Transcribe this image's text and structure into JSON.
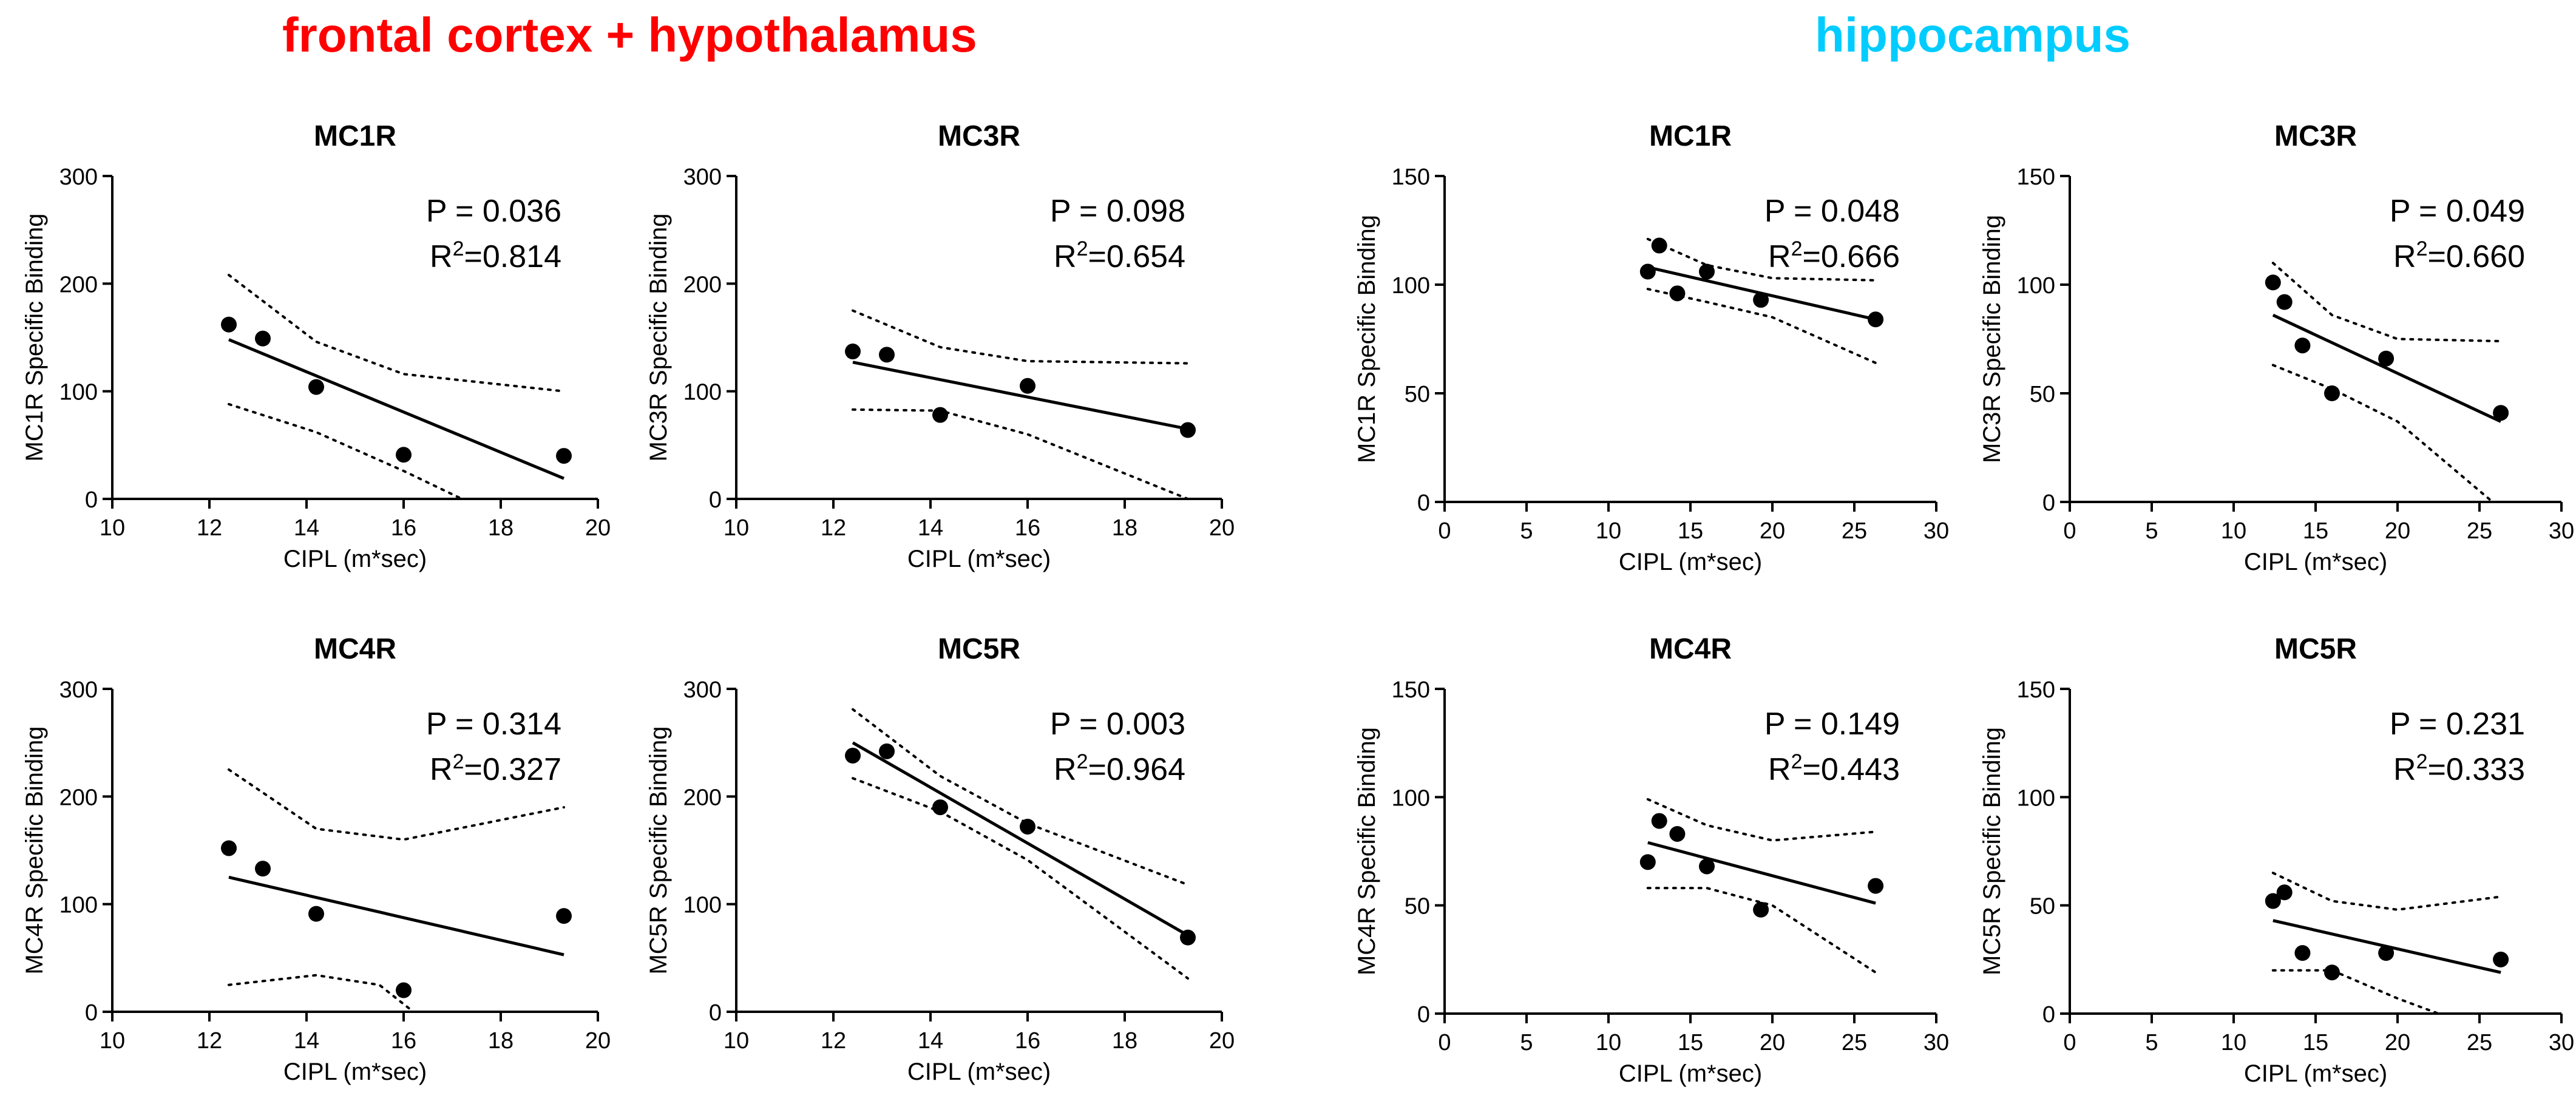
{
  "group_titles": {
    "left": {
      "text": "frontal cortex + hypothalamus",
      "color": "#ff0000"
    },
    "right": {
      "text": "hippocampus",
      "color": "#00ccff"
    }
  },
  "chart_data": [
    {
      "type": "scatter",
      "group": "frontal cortex + hypothalamus",
      "title": "MC1R",
      "xlabel": "CIPL (m*sec)",
      "ylabel": "MC1R Specific Binding",
      "xlim": [
        10,
        20
      ],
      "ylim": [
        0,
        300
      ],
      "xticks": [
        10,
        12,
        14,
        16,
        18,
        20
      ],
      "yticks": [
        0,
        100,
        200,
        300
      ],
      "points": [
        {
          "x": 12.4,
          "y": 162
        },
        {
          "x": 13.1,
          "y": 149
        },
        {
          "x": 14.2,
          "y": 104
        },
        {
          "x": 16.0,
          "y": 41
        },
        {
          "x": 19.3,
          "y": 40
        }
      ],
      "fit": {
        "x": [
          12.4,
          19.3
        ],
        "y": [
          148,
          19
        ]
      },
      "ci_upper": {
        "x": [
          12.4,
          14.2,
          16.0,
          19.3
        ],
        "y": [
          208,
          146,
          116,
          100
        ]
      },
      "ci_lower": {
        "x": [
          12.4,
          14.2,
          16.0,
          17.2
        ],
        "y": [
          88,
          62,
          26,
          0
        ]
      },
      "annotation": {
        "p": "P = 0.036",
        "r2_prefix": "R",
        "r2_sup": "2",
        "r2_value": "=0.814"
      }
    },
    {
      "type": "scatter",
      "group": "frontal cortex + hypothalamus",
      "title": "MC3R",
      "xlabel": "CIPL (m*sec)",
      "ylabel": "MC3R Specific Binding",
      "xlim": [
        10,
        20
      ],
      "ylim": [
        0,
        300
      ],
      "xticks": [
        10,
        12,
        14,
        16,
        18,
        20
      ],
      "yticks": [
        0,
        100,
        200,
        300
      ],
      "points": [
        {
          "x": 12.4,
          "y": 137
        },
        {
          "x": 13.1,
          "y": 134
        },
        {
          "x": 14.2,
          "y": 78
        },
        {
          "x": 16.0,
          "y": 105
        },
        {
          "x": 19.3,
          "y": 64
        }
      ],
      "fit": {
        "x": [
          12.4,
          19.3
        ],
        "y": [
          127,
          65
        ]
      },
      "ci_upper": {
        "x": [
          12.4,
          14.2,
          16.0,
          19.3
        ],
        "y": [
          175,
          141,
          128,
          126
        ]
      },
      "ci_lower": {
        "x": [
          12.4,
          14.2,
          16.0,
          19.3
        ],
        "y": [
          83,
          82,
          60,
          0
        ]
      },
      "annotation": {
        "p": "P = 0.098",
        "r2_prefix": "R",
        "r2_sup": "2",
        "r2_value": "=0.654"
      }
    },
    {
      "type": "scatter",
      "group": "frontal cortex + hypothalamus",
      "title": "MC4R",
      "xlabel": "CIPL (m*sec)",
      "ylabel": "MC4R Specific Binding",
      "xlim": [
        10,
        20
      ],
      "ylim": [
        0,
        300
      ],
      "xticks": [
        10,
        12,
        14,
        16,
        18,
        20
      ],
      "yticks": [
        0,
        100,
        200,
        300
      ],
      "points": [
        {
          "x": 12.4,
          "y": 152
        },
        {
          "x": 13.1,
          "y": 133
        },
        {
          "x": 14.2,
          "y": 91
        },
        {
          "x": 16.0,
          "y": 20
        },
        {
          "x": 19.3,
          "y": 89
        }
      ],
      "fit": {
        "x": [
          12.4,
          19.3
        ],
        "y": [
          125,
          53
        ]
      },
      "ci_upper": {
        "x": [
          12.4,
          14.2,
          16.0,
          19.3
        ],
        "y": [
          225,
          170,
          160,
          190
        ]
      },
      "ci_lower": {
        "x": [
          12.4,
          14.2,
          15.5,
          16.2
        ],
        "y": [
          25,
          34,
          25,
          0
        ]
      },
      "annotation": {
        "p": "P = 0.314",
        "r2_prefix": "R",
        "r2_sup": "2",
        "r2_value": "=0.327"
      }
    },
    {
      "type": "scatter",
      "group": "frontal cortex + hypothalamus",
      "title": "MC5R",
      "xlabel": "CIPL (m*sec)",
      "ylabel": "MC5R Specific Binding",
      "xlim": [
        10,
        20
      ],
      "ylim": [
        0,
        300
      ],
      "xticks": [
        10,
        12,
        14,
        16,
        18,
        20
      ],
      "yticks": [
        0,
        100,
        200,
        300
      ],
      "points": [
        {
          "x": 12.4,
          "y": 238
        },
        {
          "x": 13.1,
          "y": 242
        },
        {
          "x": 14.2,
          "y": 190
        },
        {
          "x": 16.0,
          "y": 172
        },
        {
          "x": 19.3,
          "y": 69
        }
      ],
      "fit": {
        "x": [
          12.4,
          19.3
        ],
        "y": [
          250,
          71
        ]
      },
      "ci_upper": {
        "x": [
          12.4,
          14.2,
          16.0,
          19.3
        ],
        "y": [
          281,
          219,
          175,
          118
        ]
      },
      "ci_lower": {
        "x": [
          12.4,
          14.2,
          16.0,
          19.3
        ],
        "y": [
          217,
          186,
          141,
          31
        ]
      },
      "annotation": {
        "p": "P = 0.003",
        "r2_prefix": "R",
        "r2_sup": "2",
        "r2_value": "=0.964"
      }
    },
    {
      "type": "scatter",
      "group": "hippocampus",
      "title": "MC1R",
      "xlabel": "CIPL (m*sec)",
      "ylabel": "MC1R Specific Binding",
      "xlim": [
        0,
        30
      ],
      "ylim": [
        0,
        150
      ],
      "xticks": [
        0,
        5,
        10,
        15,
        20,
        25,
        30
      ],
      "yticks": [
        0,
        50,
        100,
        150
      ],
      "points": [
        {
          "x": 12.4,
          "y": 106
        },
        {
          "x": 13.1,
          "y": 118
        },
        {
          "x": 14.2,
          "y": 96
        },
        {
          "x": 16.0,
          "y": 106
        },
        {
          "x": 19.3,
          "y": 93
        },
        {
          "x": 26.3,
          "y": 84
        }
      ],
      "fit": {
        "x": [
          12.4,
          26.3
        ],
        "y": [
          108,
          84
        ]
      },
      "ci_upper": {
        "x": [
          12.4,
          16.0,
          20.0,
          26.3
        ],
        "y": [
          121,
          109,
          103,
          102
        ]
      },
      "ci_lower": {
        "x": [
          12.4,
          16.0,
          20.0,
          26.3
        ],
        "y": [
          98,
          92,
          85,
          64
        ]
      },
      "annotation": {
        "p": "P = 0.048",
        "r2_prefix": "R",
        "r2_sup": "2",
        "r2_value": "=0.666"
      }
    },
    {
      "type": "scatter",
      "group": "hippocampus",
      "title": "MC3R",
      "xlabel": "CIPL (m*sec)",
      "ylabel": "MC3R Specific Binding",
      "xlim": [
        0,
        30
      ],
      "ylim": [
        0,
        150
      ],
      "xticks": [
        0,
        5,
        10,
        15,
        20,
        25,
        30
      ],
      "yticks": [
        0,
        50,
        100,
        150
      ],
      "points": [
        {
          "x": 12.4,
          "y": 101
        },
        {
          "x": 13.1,
          "y": 92
        },
        {
          "x": 14.2,
          "y": 72
        },
        {
          "x": 16.0,
          "y": 50
        },
        {
          "x": 19.3,
          "y": 66
        },
        {
          "x": 26.3,
          "y": 41
        }
      ],
      "fit": {
        "x": [
          12.4,
          26.3
        ],
        "y": [
          86,
          37
        ]
      },
      "ci_upper": {
        "x": [
          12.4,
          16.0,
          20.0,
          26.3
        ],
        "y": [
          110,
          86,
          75,
          74
        ]
      },
      "ci_lower": {
        "x": [
          12.4,
          16.0,
          20.0,
          25.8
        ],
        "y": [
          63,
          52,
          37,
          0
        ]
      },
      "annotation": {
        "p": "P = 0.049",
        "r2_prefix": "R",
        "r2_sup": "2",
        "r2_value": "=0.660"
      }
    },
    {
      "type": "scatter",
      "group": "hippocampus",
      "title": "MC4R",
      "xlabel": "CIPL (m*sec)",
      "ylabel": "MC4R Specific Binding",
      "xlim": [
        0,
        30
      ],
      "ylim": [
        0,
        150
      ],
      "xticks": [
        0,
        5,
        10,
        15,
        20,
        25,
        30
      ],
      "yticks": [
        0,
        50,
        100,
        150
      ],
      "points": [
        {
          "x": 12.4,
          "y": 70
        },
        {
          "x": 13.1,
          "y": 89
        },
        {
          "x": 14.2,
          "y": 83
        },
        {
          "x": 16.0,
          "y": 68
        },
        {
          "x": 19.3,
          "y": 48
        },
        {
          "x": 26.3,
          "y": 59
        }
      ],
      "fit": {
        "x": [
          12.4,
          26.3
        ],
        "y": [
          79,
          51
        ]
      },
      "ci_upper": {
        "x": [
          12.4,
          16.0,
          20.0,
          26.3
        ],
        "y": [
          99,
          87,
          80,
          84
        ]
      },
      "ci_lower": {
        "x": [
          12.4,
          16.0,
          20.0,
          26.3
        ],
        "y": [
          58,
          58,
          50,
          19
        ]
      },
      "annotation": {
        "p": "P = 0.149",
        "r2_prefix": "R",
        "r2_sup": "2",
        "r2_value": "=0.443"
      }
    },
    {
      "type": "scatter",
      "group": "hippocampus",
      "title": "MC5R",
      "xlabel": "CIPL (m*sec)",
      "ylabel": "MC5R Specific Binding",
      "xlim": [
        0,
        30
      ],
      "ylim": [
        0,
        150
      ],
      "xticks": [
        0,
        5,
        10,
        15,
        20,
        25,
        30
      ],
      "yticks": [
        0,
        50,
        100,
        150
      ],
      "points": [
        {
          "x": 12.4,
          "y": 52
        },
        {
          "x": 13.1,
          "y": 56
        },
        {
          "x": 14.2,
          "y": 28
        },
        {
          "x": 16.0,
          "y": 19
        },
        {
          "x": 19.3,
          "y": 28
        },
        {
          "x": 26.3,
          "y": 25
        }
      ],
      "fit": {
        "x": [
          12.4,
          26.3
        ],
        "y": [
          43,
          19
        ]
      },
      "ci_upper": {
        "x": [
          12.4,
          16.0,
          20.0,
          26.3
        ],
        "y": [
          65,
          52,
          48,
          54
        ]
      },
      "ci_lower": {
        "x": [
          12.4,
          16.0,
          20.0,
          22.5
        ],
        "y": [
          20,
          20,
          7,
          0
        ]
      },
      "annotation": {
        "p": "P = 0.231",
        "r2_prefix": "R",
        "r2_sup": "2",
        "r2_value": "=0.333"
      }
    }
  ]
}
